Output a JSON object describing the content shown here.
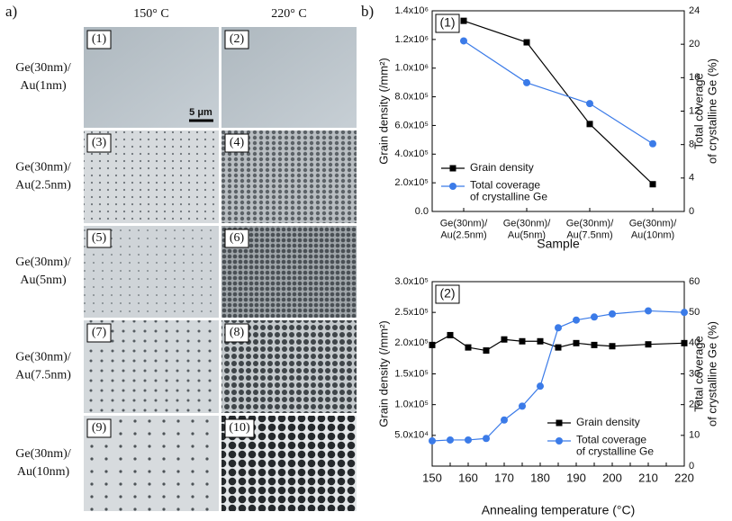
{
  "panel_a": {
    "label": "a)",
    "columns": [
      "150° C",
      "220° C"
    ],
    "rows": [
      "Ge(30nm)/\nAu(1nm)",
      "Ge(30nm)/\nAu(2.5nm)",
      "Ge(30nm)/\nAu(5nm)",
      "Ge(30nm)/\nAu(7.5nm)",
      "Ge(30nm)/\nAu(10nm)"
    ],
    "panels": [
      "(1)",
      "(2)",
      "(3)",
      "(4)",
      "(5)",
      "(6)",
      "(7)",
      "(8)",
      "(9)",
      "(10)"
    ],
    "scale_bar": "5 μm"
  },
  "panel_b_label": "b)",
  "chart_data": [
    {
      "type": "line",
      "annotation": "(1)",
      "categories": [
        "Ge(30nm)/\nAu(2.5nm)",
        "Ge(30nm)/\nAu(5nm)",
        "Ge(30nm)/\nAu(7.5nm)",
        "Ge(30nm)/\nAu(10nm)"
      ],
      "xlabel": "Sample",
      "ylabel": "Grain density (/mm²)",
      "y2label": "Total coverage\nof crystalline Ge (%)",
      "ylim": [
        0,
        1400000
      ],
      "yticks": [
        {
          "value": 0,
          "label": "0.0"
        },
        {
          "value": 200000,
          "label": "2.0x10⁵"
        },
        {
          "value": 400000,
          "label": "4.0x10⁵"
        },
        {
          "value": 600000,
          "label": "6.0x10⁵"
        },
        {
          "value": 800000,
          "label": "8.0x10⁵"
        },
        {
          "value": 1000000,
          "label": "1.0x10⁶"
        },
        {
          "value": 1200000,
          "label": "1.2x10⁶"
        },
        {
          "value": 1400000,
          "label": "1.4x10⁶"
        }
      ],
      "y2lim": [
        0,
        24
      ],
      "y2ticks": [
        0,
        4,
        8,
        12,
        16,
        20,
        24
      ],
      "legend": "lower left",
      "series": [
        {
          "name": "Grain density",
          "color": "#000000",
          "marker": "square",
          "values": [
            1330000,
            1180000,
            610000,
            190000
          ]
        },
        {
          "name": "Total coverage\nof crystalline Ge",
          "color": "#3b7be8",
          "marker": "circle",
          "axis": "y2",
          "values": [
            20.4,
            15.4,
            12.9,
            8.1
          ]
        }
      ]
    },
    {
      "type": "line",
      "annotation": "(2)",
      "x": [
        150,
        155,
        160,
        165,
        170,
        175,
        180,
        185,
        190,
        195,
        200,
        210,
        220
      ],
      "xlim": [
        150,
        220
      ],
      "xticks": [
        150,
        155,
        160,
        165,
        170,
        175,
        180,
        185,
        190,
        195,
        200,
        205,
        210,
        215,
        220
      ],
      "xlabel": "Annealing temperature (°C)",
      "ylabel": "Grain density (/mm²)",
      "y2label": "Total coverage\nof crystalline Ge (%)",
      "ylim": [
        0,
        300000
      ],
      "yticks": [
        {
          "value": 50000,
          "label": "5.0x10⁴"
        },
        {
          "value": 100000,
          "label": "1.0x10⁵"
        },
        {
          "value": 150000,
          "label": "1.5x10⁵"
        },
        {
          "value": 200000,
          "label": "2.0x10⁵"
        },
        {
          "value": 250000,
          "label": "2.5x10⁵"
        },
        {
          "value": 300000,
          "label": "3.0x10⁵"
        }
      ],
      "y2lim": [
        0,
        60
      ],
      "y2ticks": [
        0,
        10,
        20,
        30,
        40,
        50,
        60
      ],
      "legend": "lower right",
      "series": [
        {
          "name": "Grain density",
          "color": "#000000",
          "marker": "square",
          "values": [
            197000,
            213000,
            193000,
            188000,
            206000,
            203000,
            203000,
            193000,
            200000,
            197000,
            195000,
            198000,
            200000
          ]
        },
        {
          "name": "Total coverage\nof crystalline Ge",
          "color": "#3b7be8",
          "marker": "circle",
          "axis": "y2",
          "values": [
            8.2,
            8.5,
            8.5,
            9,
            15,
            19.5,
            26,
            45,
            47.5,
            48.5,
            49.5,
            50.5,
            50
          ]
        }
      ]
    }
  ]
}
